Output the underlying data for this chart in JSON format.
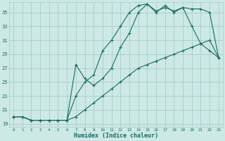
{
  "xlabel": "Humidex (Indice chaleur)",
  "bg_color": "#cce9e5",
  "grid_color": "#aaccca",
  "line_color": "#1a6b60",
  "xlim": [
    -0.5,
    23.5
  ],
  "ylim": [
    18.5,
    36.5
  ],
  "yticks": [
    19,
    21,
    23,
    25,
    27,
    29,
    31,
    33,
    35
  ],
  "xticks": [
    0,
    1,
    2,
    3,
    4,
    5,
    6,
    7,
    8,
    9,
    10,
    11,
    12,
    13,
    14,
    15,
    16,
    17,
    18,
    19,
    20,
    21,
    22,
    23
  ],
  "line1_x": [
    0,
    1,
    2,
    3,
    4,
    5,
    6,
    7,
    8,
    9,
    10,
    11,
    12,
    13,
    14,
    15,
    16,
    17,
    18,
    19,
    20,
    21,
    22,
    23
  ],
  "line1_y": [
    20.0,
    20.0,
    19.5,
    19.5,
    19.5,
    19.5,
    19.5,
    23.0,
    25.0,
    26.0,
    29.5,
    31.0,
    33.0,
    35.0,
    36.0,
    36.2,
    35.2,
    35.7,
    35.2,
    35.7,
    33.0,
    30.5,
    29.5,
    28.5
  ],
  "line2_x": [
    0,
    1,
    2,
    3,
    4,
    5,
    6,
    7,
    8,
    9,
    10,
    11,
    12,
    13,
    14,
    15,
    16,
    17,
    18,
    19,
    20,
    21,
    22,
    23
  ],
  "line2_y": [
    20.0,
    20.0,
    19.5,
    19.5,
    19.5,
    19.5,
    19.5,
    27.5,
    25.5,
    24.5,
    25.5,
    27.0,
    30.0,
    32.0,
    35.0,
    36.2,
    35.0,
    36.0,
    35.0,
    35.7,
    35.5,
    35.5,
    35.0,
    28.5
  ],
  "line3_x": [
    0,
    1,
    2,
    3,
    4,
    5,
    6,
    7,
    8,
    9,
    10,
    11,
    12,
    13,
    14,
    15,
    16,
    17,
    18,
    19,
    20,
    21,
    22,
    23
  ],
  "line3_y": [
    20.0,
    20.0,
    19.5,
    19.5,
    19.5,
    19.5,
    19.5,
    20.0,
    21.0,
    22.0,
    23.0,
    24.0,
    25.0,
    26.0,
    27.0,
    27.5,
    28.0,
    28.5,
    29.0,
    29.5,
    30.0,
    30.5,
    31.0,
    28.5
  ]
}
